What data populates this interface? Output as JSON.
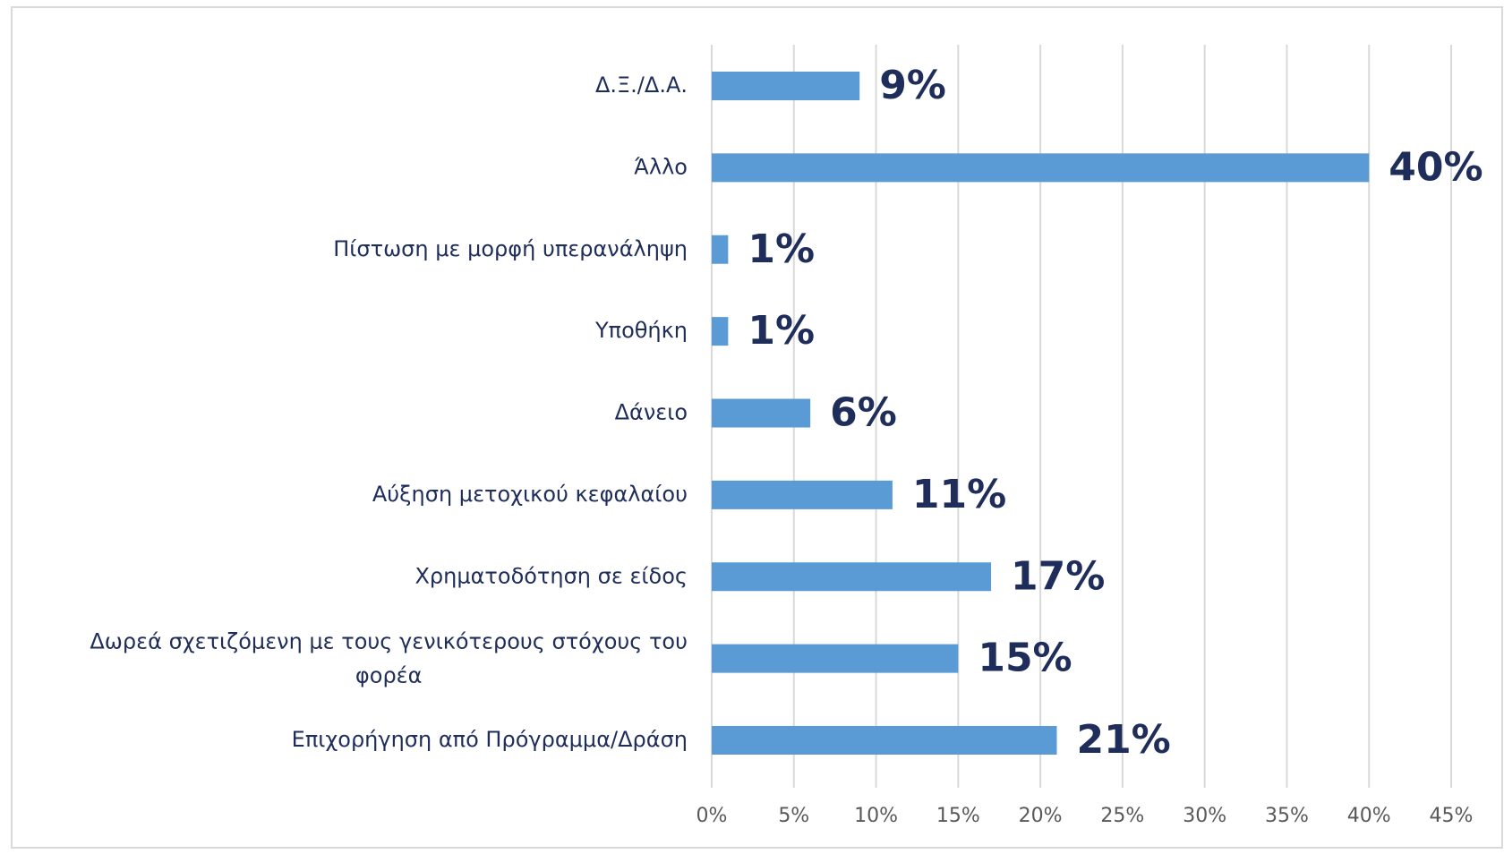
{
  "chart_data": {
    "type": "bar",
    "orientation": "horizontal",
    "categories": [
      "Δ.Ξ./Δ.Α.",
      "Άλλο",
      "Πίστωση με μορφή υπερανάληψη",
      "Υποθήκη",
      "Δάνειο",
      "Αύξηση μετοχικού κεφαλαίου",
      "Χρηματοδότηση σε είδος",
      "Δωρεά σχετιζόμενη με τους γενικότερους στόχους του φορέα",
      "Επιχορήγηση από Πρόγραμμα/Δράση"
    ],
    "values": [
      9,
      40,
      1,
      1,
      6,
      11,
      17,
      15,
      21
    ],
    "value_labels": [
      "9%",
      "40%",
      "1%",
      "1%",
      "6%",
      "11%",
      "17%",
      "15%",
      "21%"
    ],
    "color": "#5b9bd5",
    "xlim": [
      0,
      45
    ],
    "xticks": [
      {
        "value": 0,
        "label": "0%"
      },
      {
        "value": 5,
        "label": "5%"
      },
      {
        "value": 10,
        "label": "10%"
      },
      {
        "value": 15,
        "label": "15%"
      },
      {
        "value": 20,
        "label": "20%"
      },
      {
        "value": 25,
        "label": "25%"
      },
      {
        "value": 30,
        "label": "30%"
      },
      {
        "value": 35,
        "label": "35%"
      },
      {
        "value": 40,
        "label": "40%"
      },
      {
        "value": 45,
        "label": "45%"
      }
    ],
    "grid": true
  }
}
